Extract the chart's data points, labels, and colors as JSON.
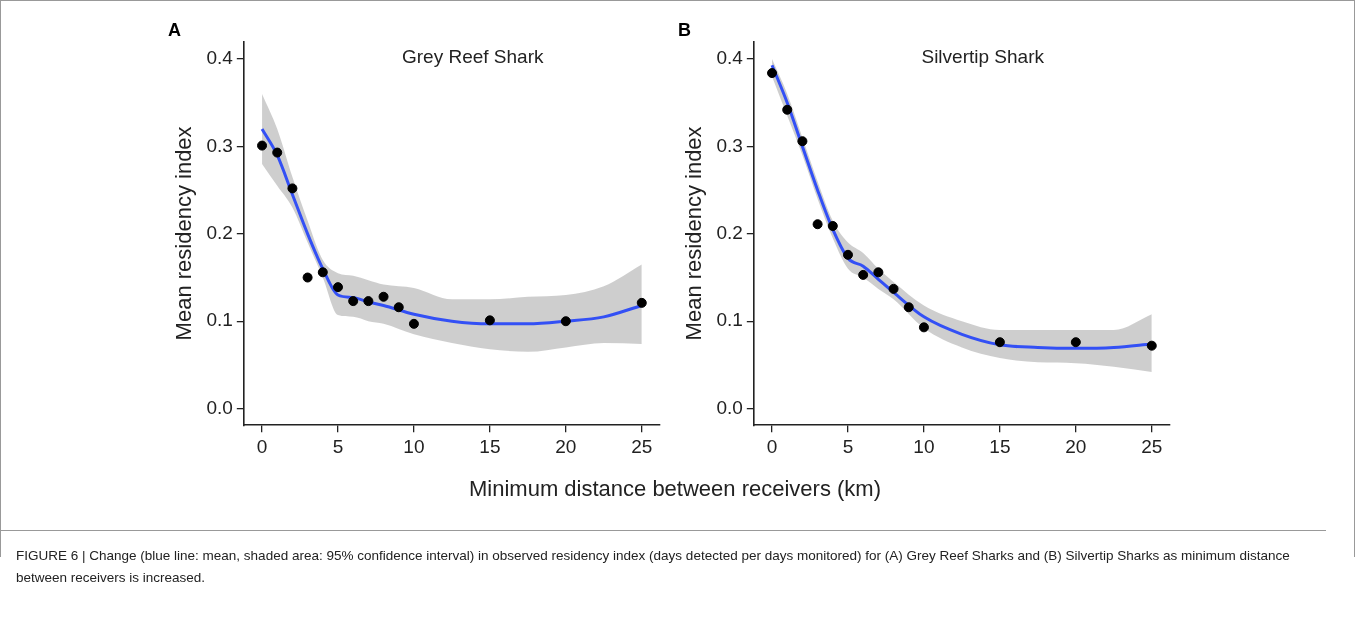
{
  "chart_data": [
    {
      "type": "scatter",
      "title": "A",
      "subtitle": "Grey Reef Shark",
      "xlabel": "Minimum distance between receivers (km)",
      "ylabel": "Mean residency index",
      "x": [
        0,
        1,
        2,
        3,
        4,
        5,
        6,
        7,
        8,
        9,
        10,
        15,
        20,
        25
      ],
      "series": [
        {
          "marker": "circle",
          "color": "#000000",
          "values": [
            0.301,
            0.293,
            0.252,
            0.15,
            0.156,
            0.139,
            0.123,
            0.123,
            0.128,
            0.116,
            0.097,
            0.101,
            0.1,
            0.121
          ]
        },
        {
          "type": "line",
          "marker": "none",
          "color": "#3350f5",
          "x": [
            0,
            1,
            2,
            3,
            4,
            5,
            6,
            7,
            8,
            10,
            12.5,
            15,
            17.5,
            20,
            22.5,
            25
          ],
          "values": [
            0.32,
            0.29,
            0.245,
            0.2,
            0.16,
            0.13,
            0.127,
            0.122,
            0.118,
            0.108,
            0.1,
            0.097,
            0.097,
            0.1,
            0.105,
            0.118
          ],
          "lower": [
            0.28,
            0.255,
            0.23,
            0.19,
            0.15,
            0.107,
            0.105,
            0.1,
            0.097,
            0.085,
            0.075,
            0.068,
            0.065,
            0.07,
            0.075,
            0.074
          ],
          "upper": [
            0.36,
            0.32,
            0.265,
            0.215,
            0.17,
            0.155,
            0.152,
            0.147,
            0.142,
            0.138,
            0.125,
            0.125,
            0.128,
            0.13,
            0.14,
            0.165
          ]
        }
      ],
      "xlim": [
        -1.2,
        26.2
      ],
      "xticks": [
        0,
        5,
        10,
        15,
        20,
        25
      ],
      "ylim": [
        -0.019,
        0.42
      ],
      "yticks": [
        {
          "value": 0,
          "label": "0.0"
        },
        {
          "value": 0.1,
          "label": "0.1"
        },
        {
          "value": 0.2,
          "label": "0.2"
        },
        {
          "value": 0.3,
          "label": "0.3"
        },
        {
          "value": 0.4,
          "label": "0.4"
        }
      ],
      "grid": false,
      "legend": false,
      "annotations": [
        "FIGURE 6 | Change (blue line: mean, shaded area: 95% confidence interval) in observed residency index (days detected per days monitored) for (A) Grey Reef Sharks and (B) Silvertip Sharks as minimum distance between receivers is increased."
      ]
    },
    {
      "type": "scatter",
      "title": "B",
      "subtitle": "Silvertip Shark",
      "ylabel": "Mean residency index",
      "x": [
        0,
        1,
        2,
        3,
        4,
        5,
        6,
        7,
        8,
        9,
        10,
        15,
        20,
        25
      ],
      "series": [
        {
          "marker": "circle",
          "color": "#000000",
          "values": [
            0.384,
            0.342,
            0.306,
            0.211,
            0.209,
            0.176,
            0.153,
            0.156,
            0.137,
            0.116,
            0.093,
            0.076,
            0.076,
            0.072
          ]
        },
        {
          "type": "line",
          "marker": "none",
          "color": "#3350f5",
          "x": [
            0,
            1,
            2,
            3,
            4,
            5,
            6,
            7,
            8,
            10,
            12.5,
            15,
            17.5,
            20,
            22.5,
            25
          ],
          "values": [
            0.393,
            0.35,
            0.3,
            0.25,
            0.205,
            0.172,
            0.163,
            0.148,
            0.133,
            0.105,
            0.085,
            0.073,
            0.07,
            0.069,
            0.07,
            0.074
          ],
          "lower": [
            0.38,
            0.335,
            0.29,
            0.24,
            0.195,
            0.16,
            0.15,
            0.137,
            0.125,
            0.092,
            0.07,
            0.058,
            0.053,
            0.052,
            0.048,
            0.042
          ],
          "upper": [
            0.4,
            0.36,
            0.31,
            0.26,
            0.215,
            0.19,
            0.178,
            0.16,
            0.145,
            0.118,
            0.1,
            0.09,
            0.09,
            0.09,
            0.09,
            0.108
          ]
        }
      ],
      "xlim": [
        -1.2,
        26.2
      ],
      "xticks": [
        0,
        5,
        10,
        15,
        20,
        25
      ],
      "ylim": [
        -0.019,
        0.42
      ],
      "yticks": [
        {
          "value": 0,
          "label": "0.0"
        },
        {
          "value": 0.1,
          "label": "0.1"
        },
        {
          "value": 0.2,
          "label": "0.2"
        },
        {
          "value": 0.3,
          "label": "0.3"
        },
        {
          "value": 0.4,
          "label": "0.4"
        }
      ],
      "grid": false,
      "legend": false
    }
  ]
}
